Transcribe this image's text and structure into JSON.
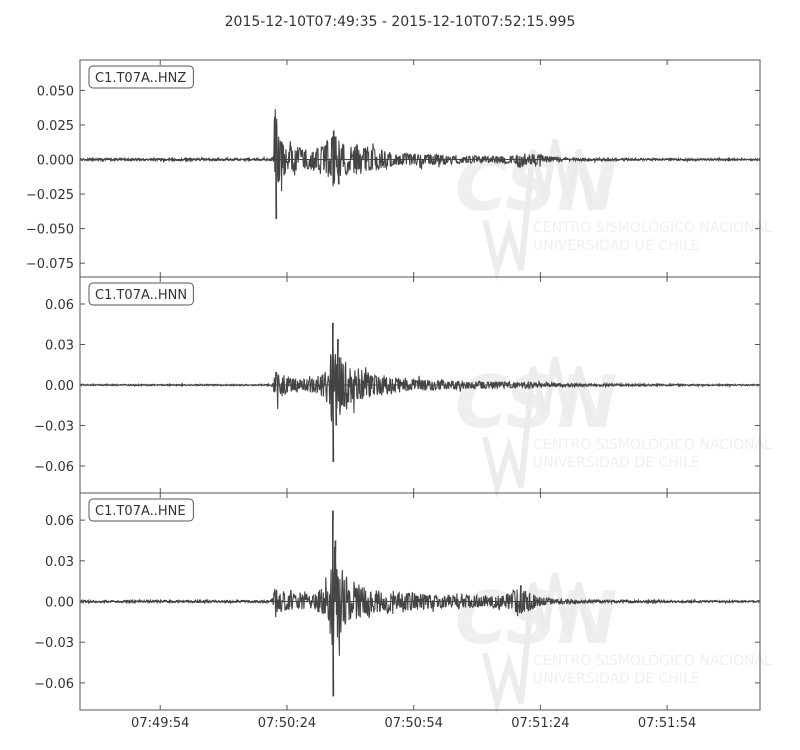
{
  "chart_data": {
    "type": "line",
    "title": "2015-12-10T07:49:35  -  2015-12-10T07:52:15.995",
    "time_start": "2015-12-10T07:49:35",
    "time_end": "2015-12-10T07:52:15.995",
    "x_ticks": [
      "07:49:54",
      "07:50:24",
      "07:50:54",
      "07:51:24",
      "07:51:54"
    ],
    "x_tick_seconds": [
      19,
      49,
      79,
      109,
      139
    ],
    "watermark": {
      "logo": "CSN",
      "line1": "CENTRO SISMOLÓGICO NACIONAL",
      "line2": "UNIVERSIDAD DE CHILE"
    },
    "trace_color": "#444444",
    "series": [
      {
        "name": "C1.T07A..HNZ",
        "ylim": [
          -0.085,
          0.072
        ],
        "y_ticks": [
          0.05,
          0.025,
          0.0,
          -0.025,
          -0.05,
          -0.075
        ],
        "y_tick_labels": [
          "0.050",
          "0.025",
          "0.000",
          "−0.025",
          "−0.050",
          "−0.075"
        ],
        "envelope": [
          [
            0,
            0.0008
          ],
          [
            45,
            0.0008
          ],
          [
            45.8,
            0.0025
          ],
          [
            45.9,
            0.012
          ],
          [
            46,
            0.033
          ],
          [
            46.3,
            0.043
          ],
          [
            46.8,
            0.02
          ],
          [
            48,
            0.012
          ],
          [
            50,
            0.01
          ],
          [
            53,
            0.008
          ],
          [
            57,
            0.009
          ],
          [
            59,
            0.016
          ],
          [
            60,
            0.021
          ],
          [
            61,
            0.014
          ],
          [
            62,
            0.012
          ],
          [
            64,
            0.01
          ],
          [
            66,
            0.011
          ],
          [
            68,
            0.009
          ],
          [
            72,
            0.007
          ],
          [
            75,
            0.004
          ],
          [
            80,
            0.0045
          ],
          [
            90,
            0.003
          ],
          [
            95,
            0.0025
          ],
          [
            100,
            0.0025
          ],
          [
            103,
            0.003
          ],
          [
            104,
            0.0065
          ],
          [
            106,
            0.0035
          ],
          [
            109,
            0.0045
          ],
          [
            110,
            0.0025
          ],
          [
            115,
            0.0012
          ],
          [
            130,
            0.0008
          ],
          [
            160.995,
            0.0006
          ]
        ],
        "peaks": [
          {
            "t": 46.4,
            "value": -0.043
          },
          {
            "t": 46.1,
            "value": 0.031
          },
          {
            "t": 60.0,
            "value": 0.021
          },
          {
            "t": 61.2,
            "value": -0.018
          }
        ]
      },
      {
        "name": "C1.T07A..HNN",
        "ylim": [
          -0.08,
          0.08
        ],
        "y_ticks": [
          0.06,
          0.03,
          0.0,
          -0.03,
          -0.06
        ],
        "y_tick_labels": [
          "0.06",
          "0.03",
          "0.00",
          "−0.03",
          "−0.06"
        ],
        "envelope": [
          [
            0,
            0.0005
          ],
          [
            45,
            0.0005
          ],
          [
            45.8,
            0.002
          ],
          [
            46,
            0.009
          ],
          [
            46.5,
            0.01
          ],
          [
            48,
            0.008
          ],
          [
            52,
            0.004
          ],
          [
            55,
            0.005
          ],
          [
            58,
            0.01
          ],
          [
            59,
            0.015
          ],
          [
            59.6,
            0.03
          ],
          [
            60.5,
            0.025
          ],
          [
            62,
            0.022
          ],
          [
            64,
            0.016
          ],
          [
            66,
            0.012
          ],
          [
            69,
            0.009
          ],
          [
            72,
            0.007
          ],
          [
            76,
            0.005
          ],
          [
            82,
            0.004
          ],
          [
            90,
            0.003
          ],
          [
            100,
            0.0025
          ],
          [
            108,
            0.002
          ],
          [
            110,
            0.0015
          ],
          [
            120,
            0.001
          ],
          [
            140,
            0.0006
          ],
          [
            160.995,
            0.0005
          ]
        ],
        "peaks": [
          {
            "t": 59.8,
            "value": 0.046
          },
          {
            "t": 59.9,
            "value": -0.057
          },
          {
            "t": 61.0,
            "value": 0.034
          },
          {
            "t": 60.6,
            "value": -0.03
          }
        ]
      },
      {
        "name": "C1.T07A..HNE",
        "ylim": [
          -0.08,
          0.08
        ],
        "y_ticks": [
          0.06,
          0.03,
          0.0,
          -0.03,
          -0.06
        ],
        "y_tick_labels": [
          "0.06",
          "0.03",
          "0.00",
          "−0.03",
          "−0.06"
        ],
        "envelope": [
          [
            0,
            0.0008
          ],
          [
            45,
            0.0008
          ],
          [
            45.8,
            0.003
          ],
          [
            46,
            0.012
          ],
          [
            47,
            0.009
          ],
          [
            50,
            0.006
          ],
          [
            55,
            0.005
          ],
          [
            58,
            0.012
          ],
          [
            59,
            0.02
          ],
          [
            59.6,
            0.035
          ],
          [
            61,
            0.028
          ],
          [
            63,
            0.02
          ],
          [
            66,
            0.013
          ],
          [
            70,
            0.009
          ],
          [
            75,
            0.007
          ],
          [
            82,
            0.006
          ],
          [
            88,
            0.005
          ],
          [
            95,
            0.0045
          ],
          [
            100,
            0.005
          ],
          [
            102,
            0.006
          ],
          [
            104,
            0.012
          ],
          [
            106,
            0.008
          ],
          [
            108,
            0.004
          ],
          [
            112,
            0.002
          ],
          [
            120,
            0.0012
          ],
          [
            140,
            0.0008
          ],
          [
            160.995,
            0.0006
          ]
        ],
        "peaks": [
          {
            "t": 59.8,
            "value": 0.067
          },
          {
            "t": 59.9,
            "value": -0.07
          },
          {
            "t": 60.4,
            "value": 0.045
          },
          {
            "t": 104.3,
            "value": 0.012
          }
        ]
      }
    ]
  }
}
